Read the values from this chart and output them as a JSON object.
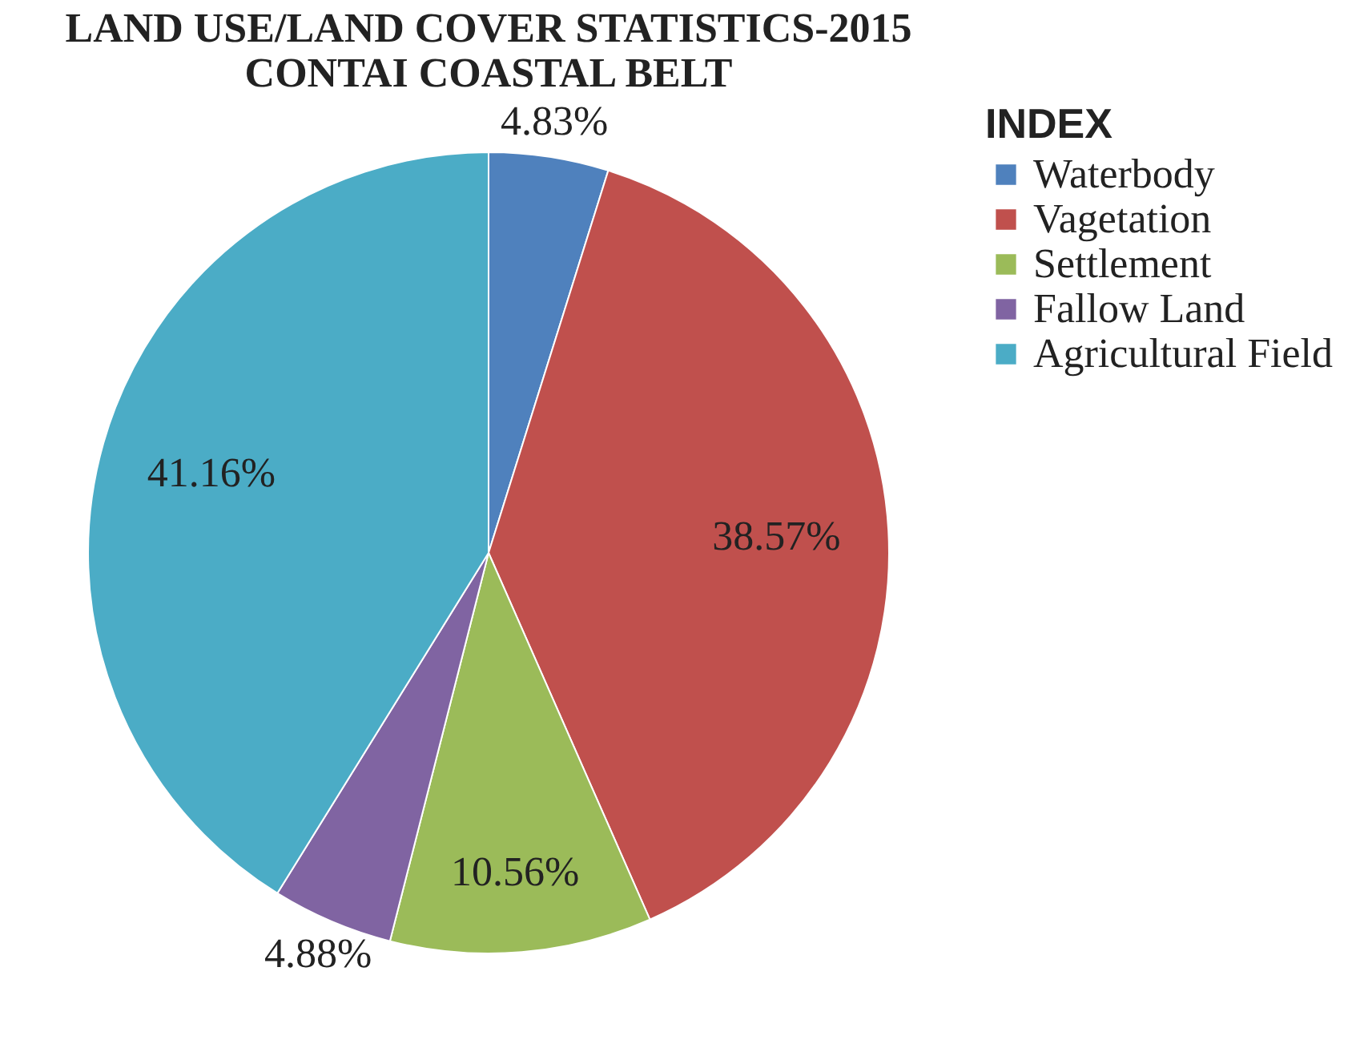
{
  "chart_data": {
    "type": "pie",
    "title": [
      "LAND USE/LAND COVER STATISTICS-2015",
      "CONTAI COASTAL BELT"
    ],
    "legend_title": "INDEX",
    "categories": [
      "Waterbody",
      "Vagetation",
      "Settlement",
      "Fallow Land",
      "Agricultural Field"
    ],
    "values": [
      4.83,
      38.57,
      10.56,
      4.88,
      41.16
    ],
    "colors": [
      "#4f81bd",
      "#c0504d",
      "#9bbb59",
      "#8064a2",
      "#4bacc6"
    ],
    "value_labels": [
      "4.83%",
      "38.57%",
      "10.56%",
      "4.88%",
      "41.16%"
    ],
    "legend": "right"
  }
}
